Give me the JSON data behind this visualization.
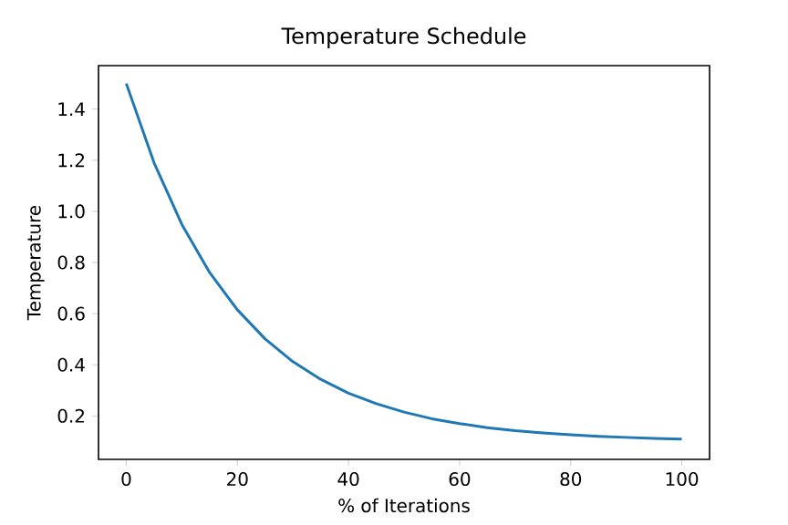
{
  "chart_data": {
    "type": "line",
    "title": "Temperature Schedule",
    "xlabel": "% of Iterations",
    "ylabel": "Temperature",
    "x": [
      0,
      5,
      10,
      15,
      20,
      25,
      30,
      35,
      40,
      45,
      50,
      55,
      60,
      65,
      70,
      75,
      80,
      85,
      90,
      95,
      100
    ],
    "series": [
      {
        "color": "#1f77b4",
        "values": [
          1.5,
          1.19,
          0.949,
          0.761,
          0.615,
          0.501,
          0.412,
          0.343,
          0.289,
          0.248,
          0.215,
          0.189,
          0.17,
          0.154,
          0.142,
          0.133,
          0.126,
          0.12,
          0.116,
          0.112,
          0.109
        ]
      }
    ],
    "xlim": [
      -5,
      105
    ],
    "ylim": [
      0.03,
      1.57
    ],
    "xticks": [
      0,
      20,
      40,
      60,
      80,
      100
    ],
    "yticks": [
      0.2,
      0.4,
      0.6,
      0.8,
      {
        "value": 1.0,
        "label": "1.0"
      },
      1.2,
      1.4
    ],
    "grid": false,
    "marker": "none",
    "line_style": "solid"
  }
}
